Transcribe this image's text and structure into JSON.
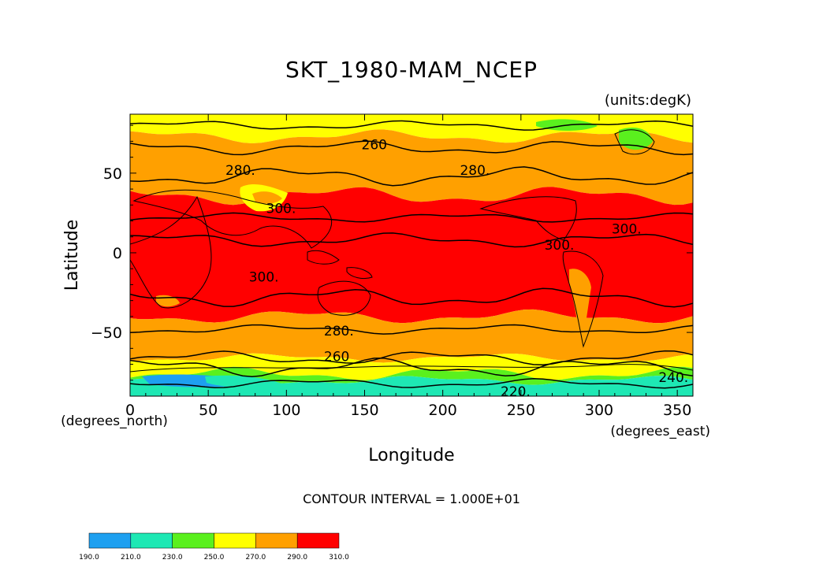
{
  "chart_data": {
    "type": "heatmap",
    "title": "SKT_1980-MAM_NCEP",
    "units_label": "(units:degK)",
    "xlabel": "Longitude",
    "ylabel": "Latitude",
    "x_units": "(degrees_east)",
    "y_units": "(degrees_north)",
    "xlim": [
      0,
      360
    ],
    "ylim": [
      -90,
      87
    ],
    "x_ticks": [
      0,
      50,
      100,
      150,
      200,
      250,
      300,
      350
    ],
    "y_ticks": [
      -50,
      0,
      50
    ],
    "x_tick_labels": [
      "0",
      "50",
      "100",
      "150",
      "200",
      "250",
      "300",
      "350"
    ],
    "y_tick_labels": [
      "−50",
      "0",
      "50"
    ],
    "contour_interval_text": "CONTOUR INTERVAL = 1.000E+01",
    "bands": [
      {
        "range": [
          190,
          210
        ],
        "color": "#1ea0f0"
      },
      {
        "range": [
          210,
          230
        ],
        "color": "#1ee8b4"
      },
      {
        "range": [
          230,
          250
        ],
        "color": "#5af01e"
      },
      {
        "range": [
          250,
          270
        ],
        "color": "#ffff00"
      },
      {
        "range": [
          270,
          290
        ],
        "color": "#ffa000"
      },
      {
        "range": [
          290,
          310
        ],
        "color": "#ff0000"
      }
    ],
    "colorbar_labels": [
      "190.0",
      "210.0",
      "230.0",
      "250.0",
      "270.0",
      "290.0",
      "310.0"
    ],
    "contour_labels": [
      {
        "text": "260",
        "lon": 148,
        "lat": 65
      },
      {
        "text": "280.",
        "lon": 61,
        "lat": 49
      },
      {
        "text": "280.",
        "lon": 211,
        "lat": 49
      },
      {
        "text": "300.",
        "lon": 87,
        "lat": 25
      },
      {
        "text": "300.",
        "lon": 308,
        "lat": 12
      },
      {
        "text": "300.",
        "lon": 265,
        "lat": 2
      },
      {
        "text": "300.",
        "lon": 76,
        "lat": -18
      },
      {
        "text": "280.",
        "lon": 124,
        "lat": -52
      },
      {
        "text": "260",
        "lon": 124,
        "lat": -68
      },
      {
        "text": "220.",
        "lon": 237,
        "lat": -90
      },
      {
        "text": "240.",
        "lon": 338,
        "lat": -81
      }
    ]
  }
}
